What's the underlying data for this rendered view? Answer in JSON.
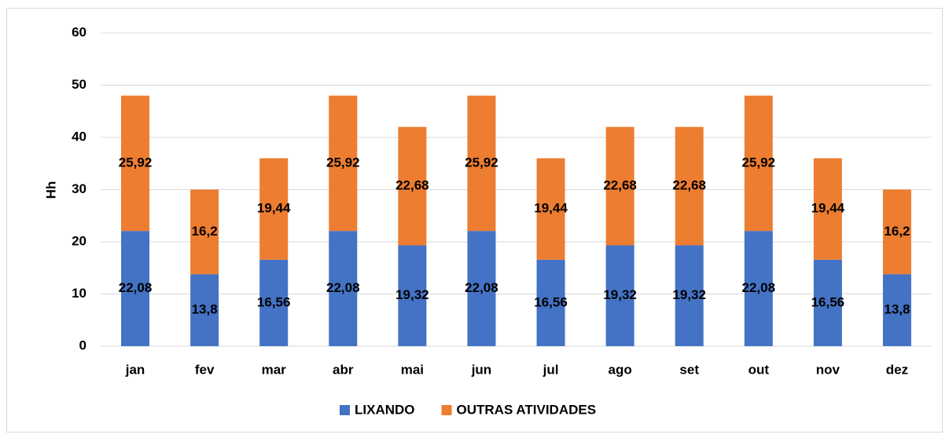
{
  "chart_data": {
    "type": "stacked_bar",
    "y_label": "Hh",
    "categories": [
      "jan",
      "fev",
      "mar",
      "abr",
      "mai",
      "jun",
      "jul",
      "ago",
      "set",
      "out",
      "nov",
      "dez"
    ],
    "series": [
      {
        "name": "LIXANDO",
        "color": "#4472c4",
        "values": [
          22.08,
          13.8,
          16.56,
          22.08,
          19.32,
          22.08,
          16.56,
          19.32,
          19.32,
          22.08,
          16.56,
          13.8
        ],
        "value_labels": [
          "22,08",
          "13,8",
          "16,56",
          "22,08",
          "19,32",
          "22,08",
          "16,56",
          "19,32",
          "19,32",
          "22,08",
          "16,56",
          "13,8"
        ]
      },
      {
        "name": "OUTRAS ATIVIDADES",
        "color": "#ed7d31",
        "values": [
          25.92,
          16.2,
          19.44,
          25.92,
          22.68,
          25.92,
          19.44,
          22.68,
          22.68,
          25.92,
          19.44,
          16.2
        ],
        "value_labels": [
          "25,92",
          "16,2",
          "19,44",
          "25,92",
          "22,68",
          "25,92",
          "19,44",
          "22,68",
          "22,68",
          "25,92",
          "19,44",
          "16,2"
        ]
      }
    ],
    "ylim": [
      0,
      60
    ],
    "yticks": [
      0,
      10,
      20,
      30,
      40,
      50,
      60
    ],
    "grid": true,
    "legend": "bottom"
  }
}
